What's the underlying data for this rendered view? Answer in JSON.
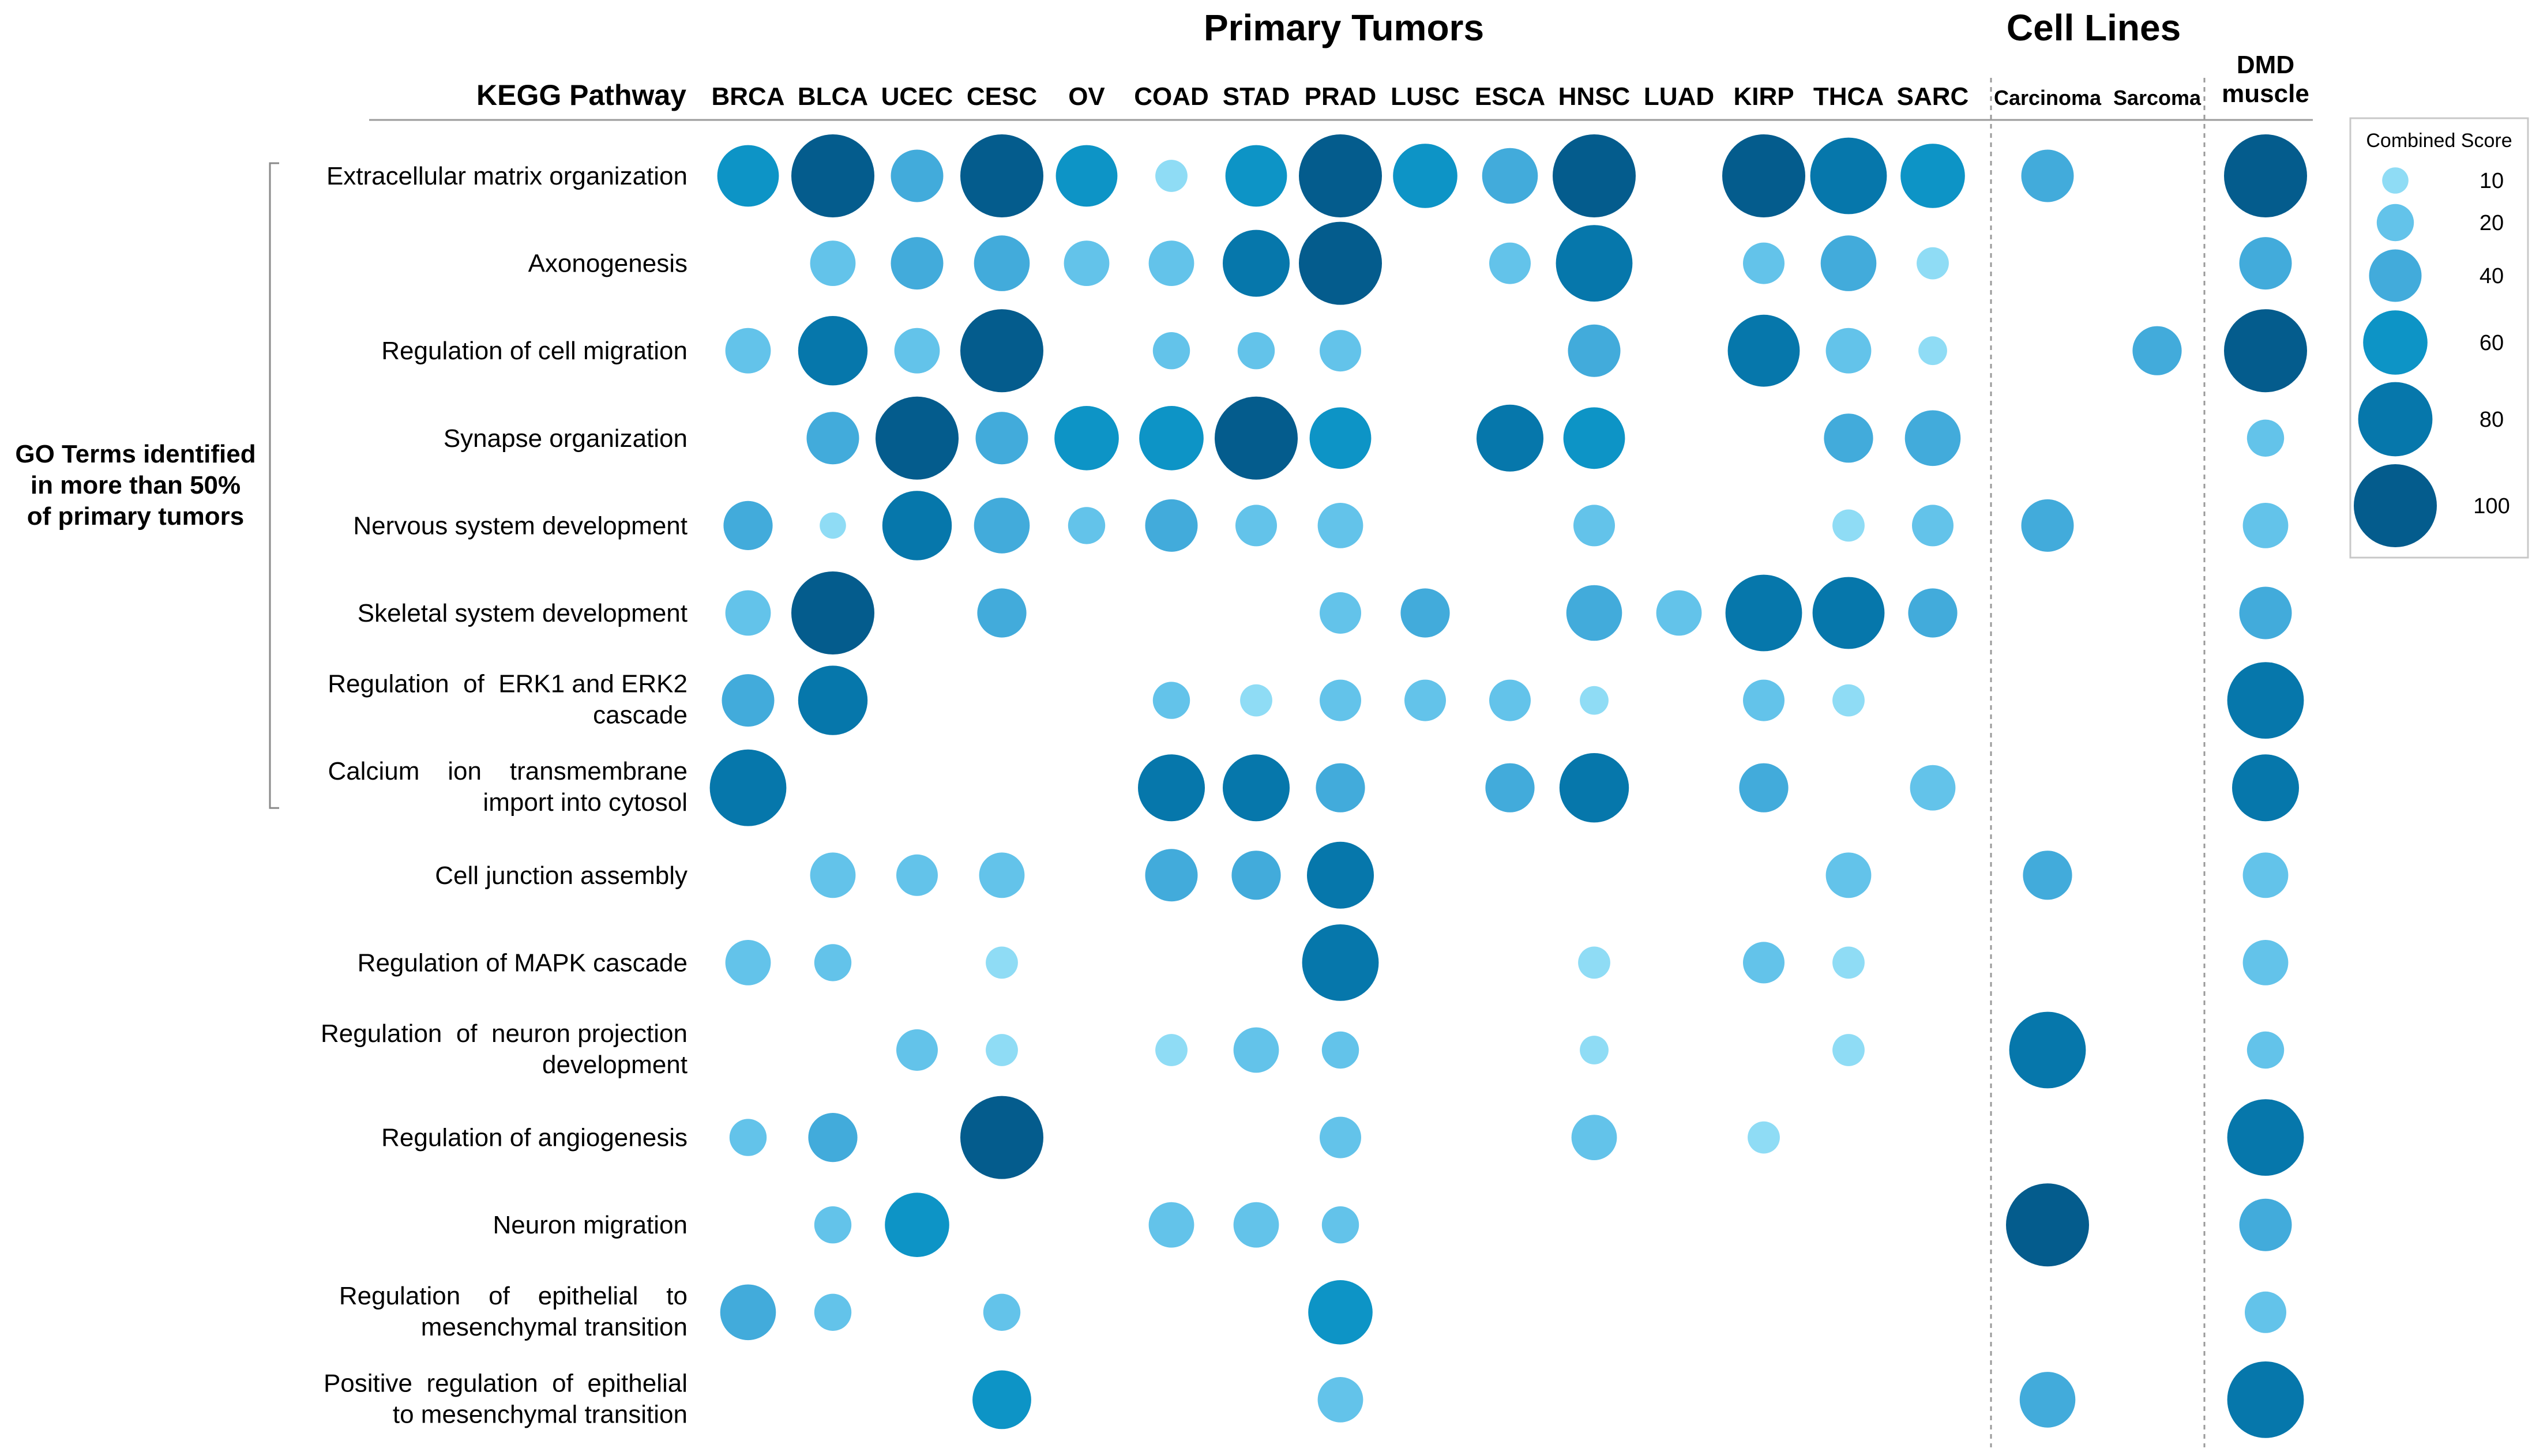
{
  "chart_data": {
    "type": "bubble",
    "group_titles": {
      "primary": "Primary Tumors",
      "cell_lines": "Cell Lines"
    },
    "row_header": "KEGG Pathway",
    "side_label": [
      "GO Terms identified",
      "in more than 50%",
      "of primary tumors"
    ],
    "columns": [
      {
        "key": "BRCA",
        "label": [
          "BRCA"
        ]
      },
      {
        "key": "BLCA",
        "label": [
          "BLCA"
        ]
      },
      {
        "key": "UCEC",
        "label": [
          "UCEC"
        ]
      },
      {
        "key": "CESC",
        "label": [
          "CESC"
        ]
      },
      {
        "key": "OV",
        "label": [
          "OV"
        ]
      },
      {
        "key": "COAD",
        "label": [
          "COAD"
        ]
      },
      {
        "key": "STAD",
        "label": [
          "STAD"
        ]
      },
      {
        "key": "PRAD",
        "label": [
          "PRAD"
        ]
      },
      {
        "key": "LUSC",
        "label": [
          "LUSC"
        ]
      },
      {
        "key": "ESCA",
        "label": [
          "ESCA"
        ]
      },
      {
        "key": "HNSC",
        "label": [
          "HNSC"
        ]
      },
      {
        "key": "LUAD",
        "label": [
          "LUAD"
        ]
      },
      {
        "key": "KIRP",
        "label": [
          "KIRP"
        ]
      },
      {
        "key": "THCA",
        "label": [
          "THCA"
        ]
      },
      {
        "key": "SARC",
        "label": [
          "SARC"
        ]
      },
      {
        "key": "Carcinoma",
        "label": [
          "Carcinoma"
        ]
      },
      {
        "key": "Sarcoma",
        "label": [
          "Sarcoma"
        ]
      },
      {
        "key": "DMD",
        "label": [
          "DMD",
          "muscle"
        ]
      }
    ],
    "rows": [
      {
        "label": [
          "Extracellular matrix organization"
        ],
        "values": [
          55,
          100,
          40,
          100,
          55,
          15,
          55,
          100,
          60,
          45,
          100,
          null,
          100,
          85,
          60,
          40,
          null,
          100
        ]
      },
      {
        "label": [
          "Axonogenesis"
        ],
        "values": [
          null,
          30,
          40,
          45,
          30,
          30,
          65,
          100,
          null,
          25,
          85,
          null,
          25,
          45,
          15,
          null,
          null,
          40
        ]
      },
      {
        "label": [
          "Regulation of cell migration"
        ],
        "values": [
          30,
          70,
          30,
          100,
          null,
          20,
          20,
          25,
          null,
          null,
          40,
          null,
          75,
          30,
          12,
          null,
          35,
          100
        ]
      },
      {
        "label": [
          "Synapse organization"
        ],
        "values": [
          null,
          40,
          100,
          40,
          60,
          60,
          100,
          55,
          null,
          65,
          55,
          null,
          null,
          35,
          45,
          null,
          null,
          20
        ]
      },
      {
        "label": [
          "Nervous system development"
        ],
        "values": [
          35,
          10,
          70,
          45,
          20,
          40,
          25,
          30,
          null,
          null,
          25,
          null,
          null,
          15,
          25,
          40,
          null,
          30
        ]
      },
      {
        "label": [
          "Skeletal system development"
        ],
        "values": [
          30,
          100,
          null,
          35,
          null,
          null,
          null,
          25,
          35,
          null,
          45,
          30,
          85,
          75,
          35,
          null,
          null,
          40
        ]
      },
      {
        "label": [
          "Regulation  of  ERK1 and ERK2",
          "cascade"
        ],
        "values": [
          40,
          70,
          null,
          null,
          null,
          20,
          15,
          25,
          25,
          25,
          12,
          null,
          25,
          15,
          null,
          null,
          null,
          85
        ]
      },
      {
        "label": [
          "Calcium    ion    transmembrane",
          "import into cytosol"
        ],
        "values": [
          85,
          null,
          null,
          null,
          null,
          65,
          65,
          35,
          null,
          35,
          70,
          null,
          35,
          null,
          30,
          null,
          null,
          65
        ]
      },
      {
        "label": [
          "Cell junction assembly"
        ],
        "values": [
          null,
          30,
          25,
          30,
          null,
          40,
          35,
          65,
          null,
          null,
          null,
          null,
          null,
          30,
          null,
          35,
          null,
          30
        ]
      },
      {
        "label": [
          "Regulation of MAPK cascade"
        ],
        "values": [
          30,
          20,
          null,
          15,
          null,
          null,
          null,
          85,
          null,
          null,
          15,
          null,
          25,
          15,
          null,
          null,
          null,
          30
        ]
      },
      {
        "label": [
          "Regulation  of  neuron projection",
          "development"
        ],
        "values": [
          null,
          null,
          25,
          15,
          null,
          15,
          30,
          20,
          null,
          null,
          12,
          null,
          null,
          15,
          null,
          85,
          null,
          20
        ]
      },
      {
        "label": [
          "Regulation of angiogenesis"
        ],
        "values": [
          20,
          35,
          null,
          100,
          null,
          null,
          null,
          25,
          null,
          null,
          30,
          null,
          15,
          null,
          null,
          null,
          null,
          85
        ]
      },
      {
        "label": [
          "Neuron migration"
        ],
        "values": [
          null,
          20,
          60,
          null,
          null,
          30,
          30,
          20,
          null,
          null,
          null,
          null,
          null,
          null,
          null,
          100,
          null,
          40
        ]
      },
      {
        "label": [
          "Regulation    of    epithelial    to",
          "mesenchymal transition"
        ],
        "values": [
          45,
          20,
          null,
          20,
          null,
          null,
          null,
          60,
          null,
          null,
          null,
          null,
          null,
          null,
          null,
          null,
          null,
          25
        ]
      },
      {
        "label": [
          "Positive  regulation  of  epithelial",
          "to mesenchymal transition"
        ],
        "values": [
          null,
          null,
          null,
          50,
          null,
          null,
          null,
          30,
          null,
          null,
          null,
          null,
          null,
          null,
          null,
          45,
          null,
          85
        ]
      }
    ],
    "bracket_rows": 8,
    "legend": {
      "title": "Combined Score",
      "levels": [
        10,
        20,
        40,
        60,
        80,
        100
      ]
    },
    "color_scale": [
      "#8fdcf5",
      "#63c3ea",
      "#42abdb",
      "#0d94c6",
      "#0677ab",
      "#045c8d"
    ],
    "max_value": 100
  }
}
